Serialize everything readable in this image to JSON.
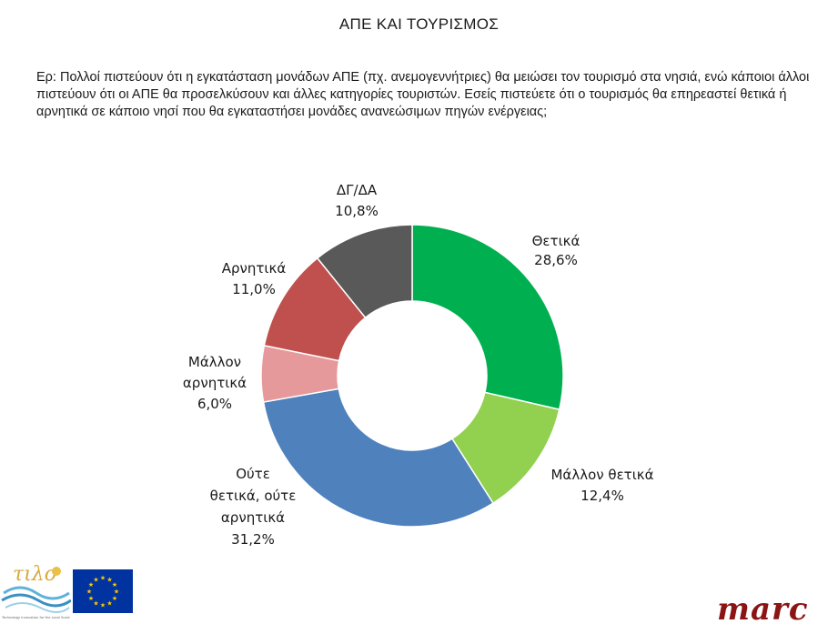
{
  "page": {
    "title": "ΑΠΕ ΚΑΙ ΤΟΥΡΙΣΜΟΣ",
    "question": "Ερ: Πολλοί πιστεύουν ότι η εγκατάσταση μονάδων ΑΠΕ (πχ. ανεμογεννήτριες) θα μειώσει τον τουρισμό στα νησιά, ενώ κάποιοι άλλοι πιστεύουν ότι οι ΑΠΕ θα προσελκύσουν και άλλες κατηγορίες τουριστών. Εσείς πιστεύετε ότι ο τουρισμός θα επηρεαστεί θετικά ή αρνητικά σε κάποιο νησί που θα εγκαταστήσει μονάδες ανανεώσιμων πηγών ενέργειας;"
  },
  "chart_data": {
    "type": "pie",
    "donut": true,
    "title": "ΑΠΕ ΚΑΙ ΤΟΥΡΙΣΜΟΣ",
    "slices": [
      {
        "label": "Θετικά",
        "value": 28.6,
        "value_label": "28,6%",
        "color": "#00b050"
      },
      {
        "label": "Μάλλον θετικά",
        "value": 12.4,
        "value_label": "12,4%",
        "color": "#92d050"
      },
      {
        "label": "Ούτε θετικά, ούτε αρνητικά",
        "value": 31.2,
        "value_label": "31,2%",
        "color": "#4f81bd"
      },
      {
        "label": "Μάλλον αρνητικά",
        "value": 6.0,
        "value_label": "6,0%",
        "color": "#e6999a"
      },
      {
        "label": "Αρνητικά",
        "value": 11.0,
        "value_label": "11,0%",
        "color": "#c0504d"
      },
      {
        "label": "ΔΓ/ΔΑ",
        "value": 10.8,
        "value_label": "10,8%",
        "color": "#595959"
      }
    ]
  },
  "logos": {
    "marc": "marc",
    "tilos_fine_print": "Technology Innovation for the Local Scale Optimum Integration of Battery Energy Storage"
  }
}
